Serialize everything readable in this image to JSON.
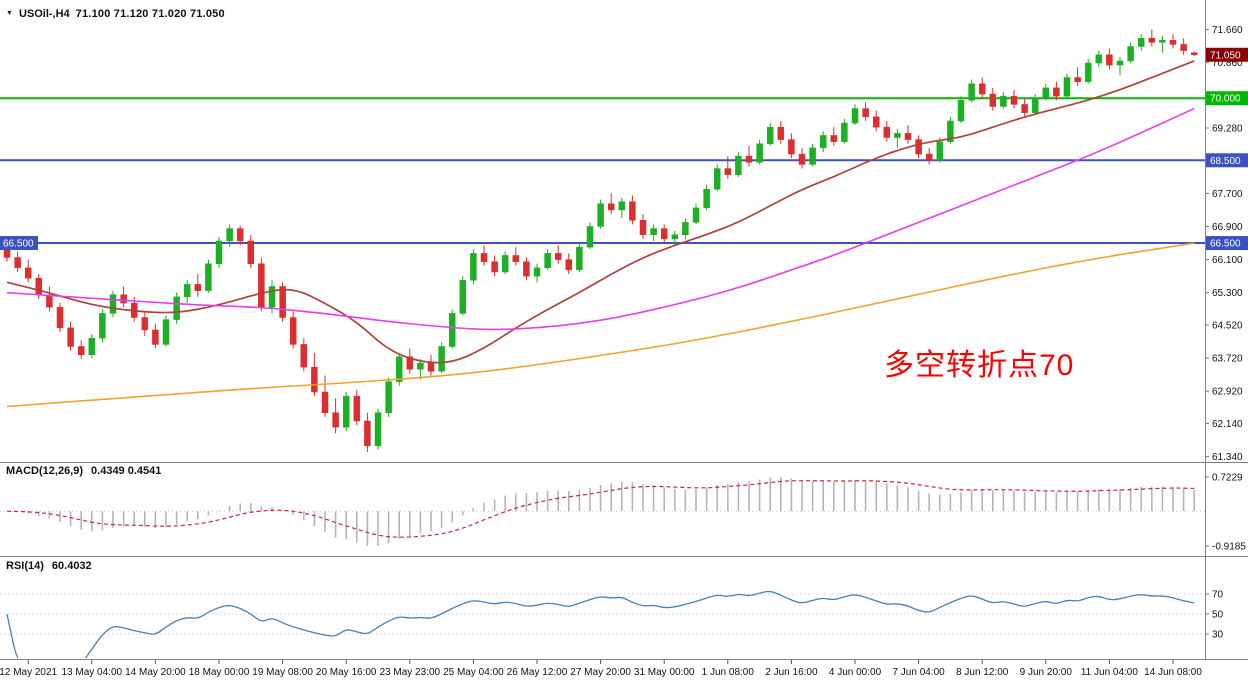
{
  "header": {
    "dropdown_icon": "▼",
    "symbol_period": "USOil-,H4",
    "ohlc": "71.100 71.120 71.020 71.050"
  },
  "annotation": {
    "text": "多空转折点70",
    "color": "#ff0000"
  },
  "macd_panel": {
    "title": "MACD(12,26,9)",
    "values": "0.4349 0.4541",
    "scale_top": "0.7229",
    "scale_bottom": "-0.9185",
    "histogram_color": "#b4b4bd",
    "signal_color": "#cc2a2a"
  },
  "rsi_panel": {
    "title": "RSI(14)",
    "value": "60.4032",
    "levels": [
      "70",
      "50",
      "30"
    ],
    "line_color": "#4682b4"
  },
  "chart_data": {
    "type": "candlestick",
    "symbol": "USOil",
    "timeframe": "H4",
    "ylim": [
      61.26,
      72.18
    ],
    "up_color": "#1cb024",
    "down_color": "#dc2e2e",
    "current_price": 71.05,
    "horizontal_levels": [
      {
        "price": 70.0,
        "color": "#00b800"
      },
      {
        "price": 68.5,
        "color": "#3a53c0"
      },
      {
        "price": 66.5,
        "color": "#3a53c0"
      }
    ],
    "y_axis_ticks": [
      71.66,
      70.86,
      69.28,
      67.7,
      66.9,
      66.1,
      65.3,
      64.52,
      63.72,
      62.92,
      62.14,
      61.34
    ],
    "y_axis_badges": [
      {
        "text": "71.050",
        "price": 71.05,
        "bg": "#8b0000",
        "name": "bid-price-badge",
        "side": "right"
      },
      {
        "text": "70.000",
        "price": 70.0,
        "bg": "#00b800",
        "name": "hline-70-price-badge",
        "side": "right"
      },
      {
        "text": "68.500",
        "price": 68.5,
        "bg": "#3a53c0",
        "name": "hline-68-5-price-badge",
        "side": "right"
      },
      {
        "text": "66.500",
        "price": 66.5,
        "bg": "#3a53c0",
        "name": "hline-66-5-price-badge",
        "side": "right"
      },
      {
        "text": "66.500",
        "price": 66.5,
        "bg": "#3a53c0",
        "name": "hline-66-5-left-badge",
        "side": "left"
      }
    ],
    "x_tick_labels": [
      "12 May 2021",
      "13 May 04:00",
      "14 May 20:00",
      "18 May 00:00",
      "19 May 08:00",
      "20 May 16:00",
      "23 May 23:00",
      "25 May 04:00",
      "26 May 12:00",
      "27 May 20:00",
      "31 May 00:00",
      "1 Jun 08:00",
      "2 Jun 16:00",
      "4 Jun 00:00",
      "7 Jun 04:00",
      "8 Jun 12:00",
      "9 Jun 20:00",
      "11 Jun 04:00",
      "14 Jun 08:00"
    ],
    "x_tick_bar_indices": [
      2,
      8,
      14,
      20,
      26,
      32,
      38,
      44,
      50,
      56,
      62,
      68,
      74,
      80,
      86,
      92,
      98,
      104,
      110
    ],
    "candles": [
      [
        66.45,
        66.6,
        66.05,
        66.15
      ],
      [
        66.15,
        66.3,
        65.8,
        65.9
      ],
      [
        65.9,
        66.1,
        65.55,
        65.65
      ],
      [
        65.65,
        65.75,
        65.15,
        65.25
      ],
      [
        65.25,
        65.45,
        64.85,
        64.95
      ],
      [
        64.95,
        65.05,
        64.35,
        64.45
      ],
      [
        64.45,
        64.6,
        63.9,
        64.0
      ],
      [
        64.0,
        64.15,
        63.7,
        63.8
      ],
      [
        63.8,
        64.3,
        63.72,
        64.2
      ],
      [
        64.2,
        64.9,
        64.1,
        64.8
      ],
      [
        64.8,
        65.35,
        64.7,
        65.25
      ],
      [
        65.25,
        65.45,
        64.95,
        65.05
      ],
      [
        65.05,
        65.2,
        64.6,
        64.7
      ],
      [
        64.7,
        64.85,
        64.25,
        64.4
      ],
      [
        64.4,
        64.55,
        63.95,
        64.05
      ],
      [
        64.05,
        64.75,
        64.0,
        64.65
      ],
      [
        64.65,
        65.3,
        64.55,
        65.2
      ],
      [
        65.2,
        65.6,
        65.05,
        65.5
      ],
      [
        65.5,
        65.75,
        65.2,
        65.35
      ],
      [
        65.35,
        66.1,
        65.3,
        66.0
      ],
      [
        66.0,
        66.65,
        65.9,
        66.55
      ],
      [
        66.55,
        66.95,
        66.4,
        66.85
      ],
      [
        66.85,
        66.92,
        66.45,
        66.55
      ],
      [
        66.55,
        66.7,
        65.9,
        66.0
      ],
      [
        66.0,
        66.15,
        64.85,
        64.95
      ],
      [
        64.95,
        65.6,
        64.8,
        65.45
      ],
      [
        65.45,
        65.55,
        64.6,
        64.7
      ],
      [
        64.7,
        64.85,
        63.95,
        64.05
      ],
      [
        64.05,
        64.2,
        63.4,
        63.5
      ],
      [
        63.5,
        63.85,
        62.8,
        62.9
      ],
      [
        62.9,
        63.3,
        62.3,
        62.4
      ],
      [
        62.4,
        62.75,
        61.9,
        62.05
      ],
      [
        62.05,
        62.9,
        61.95,
        62.8
      ],
      [
        62.8,
        62.95,
        62.1,
        62.2
      ],
      [
        62.2,
        62.4,
        61.45,
        61.6
      ],
      [
        61.6,
        62.5,
        61.5,
        62.4
      ],
      [
        62.4,
        63.25,
        62.3,
        63.15
      ],
      [
        63.15,
        63.85,
        63.05,
        63.75
      ],
      [
        63.75,
        63.95,
        63.35,
        63.45
      ],
      [
        63.45,
        63.7,
        63.2,
        63.6
      ],
      [
        63.6,
        63.8,
        63.3,
        63.4
      ],
      [
        63.4,
        64.1,
        63.35,
        64.0
      ],
      [
        64.0,
        64.9,
        63.95,
        64.8
      ],
      [
        64.8,
        65.7,
        64.75,
        65.6
      ],
      [
        65.6,
        66.35,
        65.5,
        66.25
      ],
      [
        66.25,
        66.45,
        65.95,
        66.05
      ],
      [
        66.05,
        66.2,
        65.7,
        65.8
      ],
      [
        65.8,
        66.3,
        65.75,
        66.2
      ],
      [
        66.2,
        66.4,
        65.95,
        66.05
      ],
      [
        66.05,
        66.15,
        65.6,
        65.7
      ],
      [
        65.7,
        66.0,
        65.55,
        65.9
      ],
      [
        65.9,
        66.35,
        65.85,
        66.25
      ],
      [
        66.25,
        66.45,
        66.0,
        66.1
      ],
      [
        66.1,
        66.25,
        65.75,
        65.85
      ],
      [
        65.85,
        66.5,
        65.8,
        66.4
      ],
      [
        66.4,
        67.0,
        66.35,
        66.9
      ],
      [
        66.9,
        67.55,
        66.85,
        67.45
      ],
      [
        67.45,
        67.7,
        67.2,
        67.3
      ],
      [
        67.3,
        67.6,
        67.1,
        67.5
      ],
      [
        67.5,
        67.65,
        66.95,
        67.05
      ],
      [
        67.05,
        67.2,
        66.6,
        66.7
      ],
      [
        66.7,
        66.95,
        66.55,
        66.85
      ],
      [
        66.85,
        66.95,
        66.5,
        66.6
      ],
      [
        66.6,
        66.8,
        66.45,
        66.7
      ],
      [
        66.7,
        67.1,
        66.6,
        67.0
      ],
      [
        67.0,
        67.45,
        66.95,
        67.35
      ],
      [
        67.35,
        67.9,
        67.3,
        67.8
      ],
      [
        67.8,
        68.4,
        67.75,
        68.3
      ],
      [
        68.3,
        68.6,
        68.05,
        68.15
      ],
      [
        68.15,
        68.7,
        68.1,
        68.6
      ],
      [
        68.6,
        68.85,
        68.35,
        68.45
      ],
      [
        68.45,
        69.0,
        68.4,
        68.9
      ],
      [
        68.9,
        69.4,
        68.85,
        69.3
      ],
      [
        69.3,
        69.45,
        68.9,
        69.0
      ],
      [
        69.0,
        69.15,
        68.55,
        68.65
      ],
      [
        68.65,
        68.8,
        68.3,
        68.4
      ],
      [
        68.4,
        68.9,
        68.35,
        68.8
      ],
      [
        68.8,
        69.2,
        68.7,
        69.1
      ],
      [
        69.1,
        69.3,
        68.85,
        68.95
      ],
      [
        68.95,
        69.5,
        68.9,
        69.4
      ],
      [
        69.4,
        69.85,
        69.35,
        69.75
      ],
      [
        69.75,
        69.9,
        69.45,
        69.55
      ],
      [
        69.55,
        69.7,
        69.2,
        69.3
      ],
      [
        69.3,
        69.45,
        68.95,
        69.05
      ],
      [
        69.05,
        69.25,
        68.8,
        69.15
      ],
      [
        69.15,
        69.35,
        68.9,
        69.0
      ],
      [
        69.0,
        69.1,
        68.55,
        68.65
      ],
      [
        68.65,
        68.8,
        68.4,
        68.5
      ],
      [
        68.5,
        69.05,
        68.45,
        68.95
      ],
      [
        68.95,
        69.55,
        68.9,
        69.45
      ],
      [
        69.45,
        70.05,
        69.4,
        69.95
      ],
      [
        69.95,
        70.45,
        69.9,
        70.35
      ],
      [
        70.35,
        70.5,
        70.0,
        70.1
      ],
      [
        70.1,
        70.25,
        69.7,
        69.8
      ],
      [
        69.8,
        70.15,
        69.75,
        70.05
      ],
      [
        70.05,
        70.2,
        69.75,
        69.85
      ],
      [
        69.85,
        70.0,
        69.55,
        69.65
      ],
      [
        69.65,
        70.1,
        69.6,
        70.0
      ],
      [
        70.0,
        70.35,
        69.95,
        70.25
      ],
      [
        70.25,
        70.4,
        69.95,
        70.05
      ],
      [
        70.05,
        70.6,
        70.0,
        70.5
      ],
      [
        70.5,
        70.75,
        70.3,
        70.4
      ],
      [
        70.4,
        70.95,
        70.35,
        70.85
      ],
      [
        70.85,
        71.15,
        70.75,
        71.05
      ],
      [
        71.05,
        71.2,
        70.7,
        70.8
      ],
      [
        70.8,
        71.0,
        70.55,
        70.9
      ],
      [
        70.9,
        71.35,
        70.85,
        71.25
      ],
      [
        71.25,
        71.55,
        71.15,
        71.45
      ],
      [
        71.45,
        71.66,
        71.25,
        71.35
      ],
      [
        71.35,
        71.5,
        71.1,
        71.4
      ],
      [
        71.4,
        71.55,
        71.2,
        71.3
      ],
      [
        71.3,
        71.45,
        71.05,
        71.15
      ],
      [
        71.1,
        71.12,
        71.02,
        71.05
      ]
    ],
    "ma_lines": [
      {
        "name": "ma-fast-line",
        "color": "#b0413b",
        "width": 1.7,
        "points": [
          [
            0,
            65.55
          ],
          [
            4,
            65.3
          ],
          [
            8,
            65.0
          ],
          [
            12,
            64.85
          ],
          [
            16,
            64.8
          ],
          [
            20,
            65.0
          ],
          [
            24,
            65.3
          ],
          [
            27,
            65.42
          ],
          [
            30,
            65.05
          ],
          [
            33,
            64.6
          ],
          [
            36,
            63.9
          ],
          [
            39,
            63.62
          ],
          [
            42,
            63.6
          ],
          [
            45,
            63.95
          ],
          [
            48,
            64.45
          ],
          [
            51,
            64.9
          ],
          [
            54,
            65.3
          ],
          [
            57,
            65.75
          ],
          [
            60,
            66.15
          ],
          [
            63,
            66.45
          ],
          [
            66,
            66.7
          ],
          [
            69,
            67.0
          ],
          [
            72,
            67.4
          ],
          [
            75,
            67.8
          ],
          [
            78,
            68.1
          ],
          [
            81,
            68.45
          ],
          [
            84,
            68.75
          ],
          [
            87,
            68.95
          ],
          [
            90,
            69.05
          ],
          [
            93,
            69.3
          ],
          [
            96,
            69.55
          ],
          [
            99,
            69.75
          ],
          [
            102,
            69.95
          ],
          [
            105,
            70.2
          ],
          [
            108,
            70.5
          ],
          [
            110,
            70.7
          ],
          [
            112,
            70.9
          ]
        ]
      },
      {
        "name": "ma-mid-line",
        "color": "#e83ee8",
        "width": 1.6,
        "points": [
          [
            0,
            65.3
          ],
          [
            6,
            65.2
          ],
          [
            12,
            65.1
          ],
          [
            18,
            65.0
          ],
          [
            24,
            64.95
          ],
          [
            30,
            64.8
          ],
          [
            36,
            64.6
          ],
          [
            42,
            64.45
          ],
          [
            46,
            64.4
          ],
          [
            50,
            64.45
          ],
          [
            54,
            64.55
          ],
          [
            58,
            64.72
          ],
          [
            62,
            64.95
          ],
          [
            66,
            65.2
          ],
          [
            70,
            65.5
          ],
          [
            74,
            65.85
          ],
          [
            78,
            66.2
          ],
          [
            82,
            66.6
          ],
          [
            86,
            67.0
          ],
          [
            90,
            67.4
          ],
          [
            94,
            67.8
          ],
          [
            98,
            68.2
          ],
          [
            102,
            68.6
          ],
          [
            106,
            69.05
          ],
          [
            109,
            69.4
          ],
          [
            112,
            69.75
          ]
        ]
      },
      {
        "name": "ma-slow-line",
        "color": "#eda32c",
        "width": 1.6,
        "points": [
          [
            0,
            62.55
          ],
          [
            12,
            62.78
          ],
          [
            24,
            63.0
          ],
          [
            34,
            63.15
          ],
          [
            44,
            63.35
          ],
          [
            54,
            63.7
          ],
          [
            64,
            64.1
          ],
          [
            74,
            64.6
          ],
          [
            84,
            65.15
          ],
          [
            94,
            65.7
          ],
          [
            102,
            66.1
          ],
          [
            112,
            66.5
          ]
        ]
      }
    ]
  }
}
